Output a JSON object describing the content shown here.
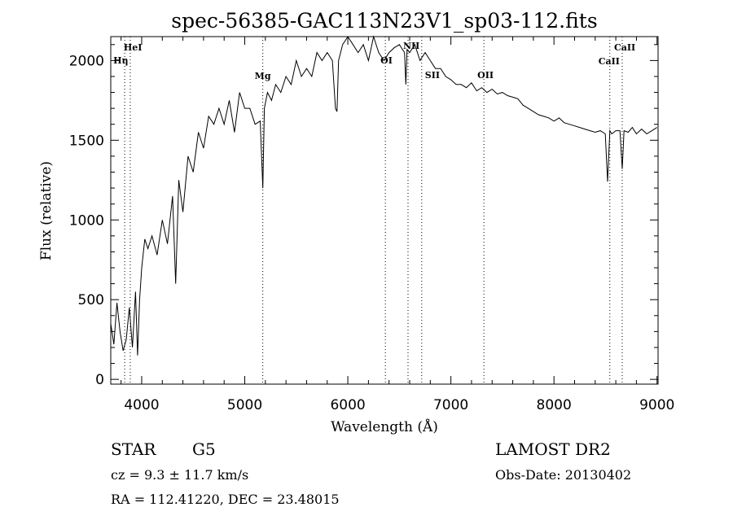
{
  "chart_data": {
    "type": "line",
    "title": "spec-56385-GAC113N23V1_sp03-112.fits",
    "xlabel": "Wavelength (Å)",
    "ylabel": "Flux (relative)",
    "xlim": [
      3700,
      9010
    ],
    "ylim": [
      -30,
      2150
    ],
    "xticks": [
      4000,
      5000,
      6000,
      7000,
      8000,
      9000
    ],
    "yticks": [
      0,
      500,
      1000,
      1500,
      2000
    ],
    "grid": false,
    "series": [
      {
        "x": [
          3700,
          3730,
          3760,
          3790,
          3820,
          3850,
          3880,
          3910,
          3940,
          3960,
          3980,
          4000,
          4030,
          4060,
          4100,
          4150,
          4200,
          4250,
          4300,
          4330,
          4360,
          4400,
          4450,
          4500,
          4550,
          4600,
          4650,
          4700,
          4750,
          4800,
          4850,
          4900,
          4950,
          5000,
          5050,
          5100,
          5150,
          5175,
          5190,
          5220,
          5260,
          5300,
          5350,
          5400,
          5450,
          5500,
          5550,
          5600,
          5650,
          5700,
          5750,
          5800,
          5850,
          5880,
          5895,
          5910,
          5950,
          6000,
          6050,
          6100,
          6150,
          6200,
          6250,
          6300,
          6350,
          6400,
          6450,
          6500,
          6550,
          6563,
          6575,
          6600,
          6650,
          6700,
          6750,
          6800,
          6850,
          6900,
          6950,
          7000,
          7050,
          7100,
          7150,
          7200,
          7250,
          7300,
          7350,
          7400,
          7450,
          7500,
          7550,
          7600,
          7650,
          7700,
          7750,
          7800,
          7850,
          7900,
          7950,
          8000,
          8050,
          8100,
          8150,
          8200,
          8250,
          8300,
          8350,
          8400,
          8450,
          8498,
          8520,
          8542,
          8560,
          8600,
          8640,
          8662,
          8680,
          8720,
          8760,
          8800,
          8850,
          8900,
          8950,
          9000
        ],
        "y": [
          350,
          220,
          480,
          300,
          180,
          250,
          450,
          200,
          550,
          150,
          500,
          700,
          880,
          820,
          900,
          780,
          1000,
          850,
          1150,
          600,
          1250,
          1050,
          1400,
          1300,
          1550,
          1450,
          1650,
          1600,
          1700,
          1600,
          1750,
          1550,
          1800,
          1700,
          1700,
          1600,
          1620,
          1200,
          1700,
          1800,
          1750,
          1850,
          1800,
          1900,
          1850,
          2000,
          1900,
          1950,
          1900,
          2050,
          2000,
          2050,
          2000,
          1700,
          1680,
          2000,
          2100,
          2150,
          2100,
          2050,
          2100,
          2000,
          2150,
          2050,
          2000,
          2050,
          2080,
          2100,
          2050,
          1850,
          2070,
          2050,
          2100,
          2000,
          2050,
          2000,
          1950,
          1950,
          1900,
          1880,
          1850,
          1850,
          1830,
          1860,
          1810,
          1830,
          1800,
          1820,
          1790,
          1800,
          1780,
          1770,
          1760,
          1720,
          1700,
          1680,
          1660,
          1650,
          1640,
          1620,
          1640,
          1610,
          1600,
          1590,
          1580,
          1570,
          1560,
          1550,
          1560,
          1540,
          1240,
          1560,
          1540,
          1560,
          1560,
          1320,
          1560,
          1550,
          1580,
          1540,
          1570,
          1540,
          1560,
          1580
        ]
      }
    ],
    "lines": [
      {
        "label": "HeI",
        "x": 3889
      },
      {
        "label": "Hη",
        "x": 3835
      },
      {
        "label": "Mg",
        "x": 5175
      },
      {
        "label": "OI",
        "x": 6364
      },
      {
        "label": "NII",
        "x": 6584
      },
      {
        "label": "SII",
        "x": 6717
      },
      {
        "label": "OII",
        "x": 7320
      },
      {
        "label": "CaII",
        "x": 8542
      },
      {
        "label": "CaII",
        "x": 8662
      }
    ]
  },
  "info": {
    "object_type": "STAR",
    "subclass": "G5",
    "survey": "LAMOST DR2",
    "redshift": "cz = 9.3 ± 11.7 km/s",
    "obs_date": "Obs-Date: 20130402",
    "coords": "RA = 112.41220, DEC =  23.48015"
  }
}
